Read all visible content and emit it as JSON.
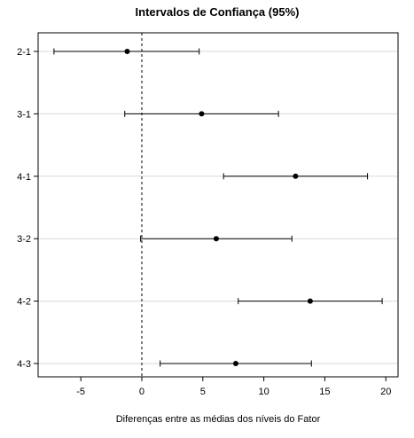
{
  "chart_data": {
    "type": "scatter",
    "subtype": "confidence-interval",
    "title": "Intervalos de Confiança (95%)",
    "xlabel": "Diferenças entre as médias dos níveis do Fator",
    "ylabel": "",
    "xlim": [
      -8.5,
      21
    ],
    "x_ticks": [
      -5,
      0,
      5,
      10,
      15,
      20
    ],
    "reference_line": {
      "x": 0,
      "style": "dashed"
    },
    "grid": "horizontal lines at each comparison",
    "series": [
      {
        "categories": [
          "2-1",
          "3-1",
          "4-1",
          "3-2",
          "4-2",
          "4-3"
        ],
        "estimate": [
          -1.2,
          4.9,
          12.6,
          6.1,
          13.8,
          7.7
        ],
        "lower": [
          -7.2,
          -1.4,
          6.7,
          -0.1,
          7.9,
          1.5
        ],
        "upper": [
          4.7,
          11.2,
          18.5,
          12.3,
          19.7,
          13.9
        ]
      }
    ]
  }
}
